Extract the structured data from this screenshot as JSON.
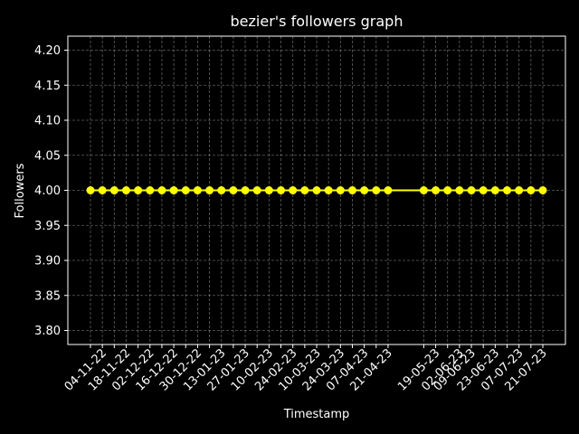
{
  "chart_data": {
    "type": "line",
    "title": "bezier's followers graph",
    "xlabel": "Timestamp",
    "ylabel": "Followers",
    "ylim": [
      3.78,
      4.22
    ],
    "yticks": [
      "3.80",
      "3.85",
      "3.90",
      "3.95",
      "4.00",
      "4.05",
      "4.10",
      "4.15",
      "4.20"
    ],
    "xtick_labels": [
      "04-11-22",
      "18-11-22",
      "02-12-22",
      "16-12-22",
      "30-12-22",
      "13-01-23",
      "27-01-23",
      "10-02-23",
      "24-02-23",
      "10-03-23",
      "24-03-23",
      "07-04-23",
      "21-04-23",
      "19-05-23",
      "02-06-23",
      "09-06-23",
      "23-06-23",
      "07-07-23",
      "21-07-23"
    ],
    "x": [
      "28-10-22",
      "04-11-22",
      "11-11-22",
      "18-11-22",
      "25-11-22",
      "02-12-22",
      "09-12-22",
      "16-12-22",
      "23-12-22",
      "30-12-22",
      "06-01-23",
      "13-01-23",
      "20-01-23",
      "27-01-23",
      "03-02-23",
      "10-02-23",
      "17-02-23",
      "24-02-23",
      "03-03-23",
      "10-03-23",
      "17-03-23",
      "24-03-23",
      "31-03-23",
      "07-04-23",
      "14-04-23",
      "21-04-23",
      "12-05-23",
      "19-05-23",
      "26-05-23",
      "02-06-23",
      "09-06-23",
      "16-06-23",
      "23-06-23",
      "30-06-23",
      "07-07-23",
      "14-07-23",
      "21-07-23"
    ],
    "series": [
      {
        "values": [
          4,
          4,
          4,
          4,
          4,
          4,
          4,
          4,
          4,
          4,
          4,
          4,
          4,
          4,
          4,
          4,
          4,
          4,
          4,
          4,
          4,
          4,
          4,
          4,
          4,
          4,
          4,
          4,
          4,
          4,
          4,
          4,
          4,
          4,
          4,
          4,
          4
        ],
        "color": "#ffff00"
      }
    ],
    "grid": true,
    "background": "#000000",
    "foreground": "#ffffff"
  }
}
